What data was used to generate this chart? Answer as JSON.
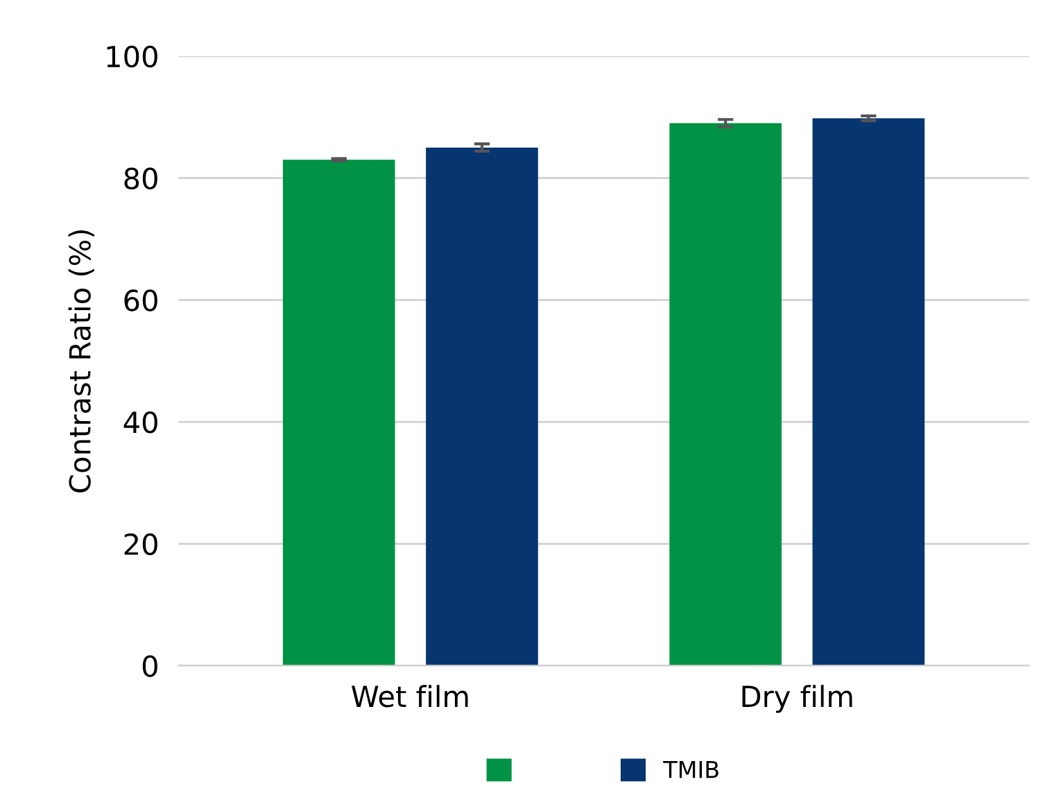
{
  "chart_data": {
    "type": "bar",
    "ylabel": "Contrast Ratio (%)",
    "categories": [
      "Wet film",
      "Dry film"
    ],
    "series": [
      {
        "color": "#009245",
        "values": [
          83,
          89
        ],
        "errors": [
          0.2,
          0.6
        ]
      },
      {
        "name": "TMIB",
        "color": "#063570",
        "values": [
          85,
          89.8
        ],
        "errors": [
          0.6,
          0.4
        ]
      }
    ],
    "ylim": [
      0,
      100
    ],
    "yticks": [
      0,
      20,
      40,
      60,
      80,
      100
    ],
    "grid": "y",
    "legend": "bottom"
  }
}
